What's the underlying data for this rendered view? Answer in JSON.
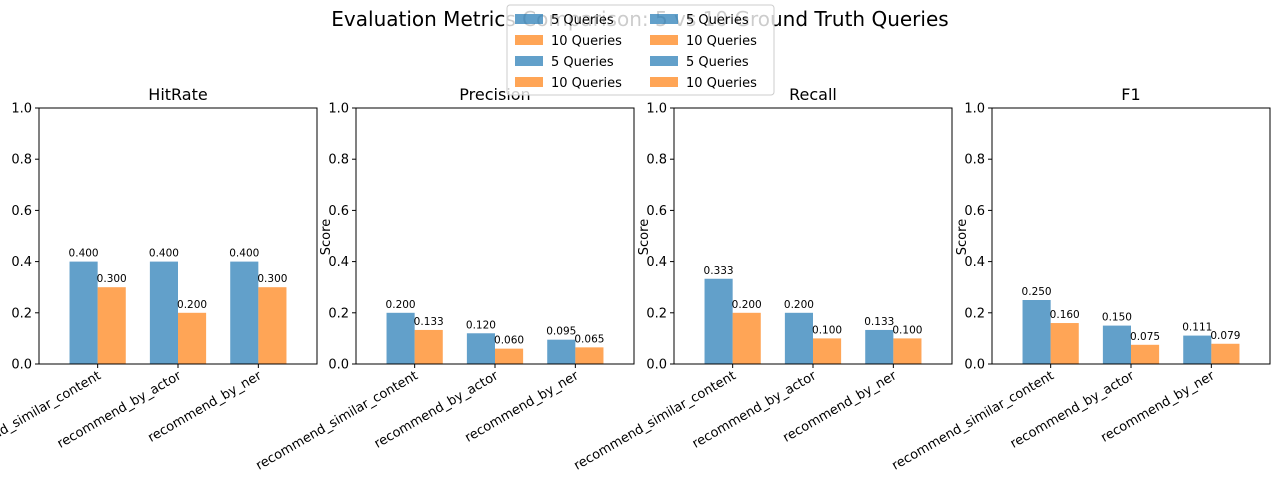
{
  "title": "Evaluation Metrics Comparison: 5 vs 10 Ground Truth Queries",
  "colors": {
    "series_5": "#1f77b4",
    "series_10": "#ff7f0e",
    "bar_opacity": 0.7
  },
  "legend": {
    "placement": "top-center",
    "columns": 2,
    "entries": [
      {
        "label": "5 Queries",
        "series": 0
      },
      {
        "label": "10 Queries",
        "series": 1
      },
      {
        "label": "5 Queries",
        "series": 0
      },
      {
        "label": "10 Queries",
        "series": 1
      },
      {
        "label": "5 Queries",
        "series": 0
      },
      {
        "label": "10 Queries",
        "series": 1
      },
      {
        "label": "5 Queries",
        "series": 0
      },
      {
        "label": "10 Queries",
        "series": 1
      }
    ]
  },
  "chart_data": [
    {
      "type": "bar",
      "title": "HitRate",
      "ylabel": "",
      "ylim": [
        0,
        1
      ],
      "yticks": [
        "0.0",
        "0.2",
        "0.4",
        "0.6",
        "0.8",
        "1.0"
      ],
      "categories": [
        "recommend_similar_content",
        "recommend_by_actor",
        "recommend_by_ner"
      ],
      "series": [
        {
          "name": "5 Queries",
          "values": [
            0.4,
            0.4,
            0.4
          ],
          "labels": [
            "0.400",
            "0.400",
            "0.400"
          ]
        },
        {
          "name": "10 Queries",
          "values": [
            0.3,
            0.2,
            0.3
          ],
          "labels": [
            "0.300",
            "0.200",
            "0.300"
          ]
        }
      ]
    },
    {
      "type": "bar",
      "title": "Precision",
      "ylabel": "Score",
      "ylim": [
        0,
        1
      ],
      "yticks": [
        "0.0",
        "0.2",
        "0.4",
        "0.6",
        "0.8",
        "1.0"
      ],
      "categories": [
        "recommend_similar_content",
        "recommend_by_actor",
        "recommend_by_ner"
      ],
      "series": [
        {
          "name": "5 Queries",
          "values": [
            0.2,
            0.12,
            0.095
          ],
          "labels": [
            "0.200",
            "0.120",
            "0.095"
          ]
        },
        {
          "name": "10 Queries",
          "values": [
            0.133,
            0.06,
            0.065
          ],
          "labels": [
            "0.133",
            "0.060",
            "0.065"
          ]
        }
      ]
    },
    {
      "type": "bar",
      "title": "Recall",
      "ylabel": "Score",
      "ylim": [
        0,
        1
      ],
      "yticks": [
        "0.0",
        "0.2",
        "0.4",
        "0.6",
        "0.8",
        "1.0"
      ],
      "categories": [
        "recommend_similar_content",
        "recommend_by_actor",
        "recommend_by_ner"
      ],
      "series": [
        {
          "name": "5 Queries",
          "values": [
            0.333,
            0.2,
            0.133
          ],
          "labels": [
            "0.333",
            "0.200",
            "0.133"
          ]
        },
        {
          "name": "10 Queries",
          "values": [
            0.2,
            0.1,
            0.1
          ],
          "labels": [
            "0.200",
            "0.100",
            "0.100"
          ]
        }
      ]
    },
    {
      "type": "bar",
      "title": "F1",
      "ylabel": "Score",
      "ylim": [
        0,
        1
      ],
      "yticks": [
        "0.0",
        "0.2",
        "0.4",
        "0.6",
        "0.8",
        "1.0"
      ],
      "categories": [
        "recommend_similar_content",
        "recommend_by_actor",
        "recommend_by_ner"
      ],
      "series": [
        {
          "name": "5 Queries",
          "values": [
            0.25,
            0.15,
            0.111
          ],
          "labels": [
            "0.250",
            "0.150",
            "0.111"
          ]
        },
        {
          "name": "10 Queries",
          "values": [
            0.16,
            0.075,
            0.079
          ],
          "labels": [
            "0.160",
            "0.075",
            "0.079"
          ]
        }
      ]
    }
  ]
}
